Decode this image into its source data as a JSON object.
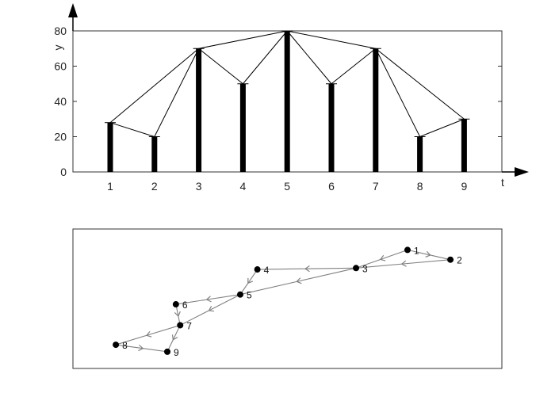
{
  "chart_data": [
    {
      "type": "bar",
      "xlabel": "t",
      "ylabel": "y",
      "x": [
        1,
        2,
        3,
        4,
        5,
        6,
        7,
        8,
        9
      ],
      "values": [
        28,
        20,
        70,
        50,
        80,
        50,
        70,
        20,
        30
      ],
      "ylim": [
        0,
        80
      ],
      "yticks": [
        0,
        20,
        40,
        60,
        80
      ],
      "grid": false,
      "bar_color": "#000000",
      "links": [
        [
          1,
          2
        ],
        [
          1,
          3
        ],
        [
          2,
          3
        ],
        [
          3,
          4
        ],
        [
          3,
          5
        ],
        [
          4,
          5
        ],
        [
          5,
          6
        ],
        [
          5,
          7
        ],
        [
          6,
          7
        ],
        [
          7,
          8
        ],
        [
          7,
          9
        ],
        [
          8,
          9
        ]
      ]
    },
    {
      "type": "network",
      "nodes": [
        {
          "id": "1",
          "x": 0.78,
          "y": 0.85
        },
        {
          "id": "2",
          "x": 0.88,
          "y": 0.78
        },
        {
          "id": "3",
          "x": 0.66,
          "y": 0.72
        },
        {
          "id": "4",
          "x": 0.43,
          "y": 0.71
        },
        {
          "id": "5",
          "x": 0.39,
          "y": 0.53
        },
        {
          "id": "6",
          "x": 0.24,
          "y": 0.46
        },
        {
          "id": "7",
          "x": 0.25,
          "y": 0.31
        },
        {
          "id": "8",
          "x": 0.1,
          "y": 0.17
        },
        {
          "id": "9",
          "x": 0.22,
          "y": 0.12
        }
      ],
      "edges": [
        [
          "1",
          "2"
        ],
        [
          "2",
          "3"
        ],
        [
          "1",
          "3"
        ],
        [
          "3",
          "4"
        ],
        [
          "3",
          "5"
        ],
        [
          "4",
          "5"
        ],
        [
          "5",
          "6"
        ],
        [
          "5",
          "7"
        ],
        [
          "6",
          "7"
        ],
        [
          "7",
          "8"
        ],
        [
          "7",
          "9"
        ],
        [
          "8",
          "9"
        ]
      ],
      "edge_color": "#808080"
    }
  ]
}
